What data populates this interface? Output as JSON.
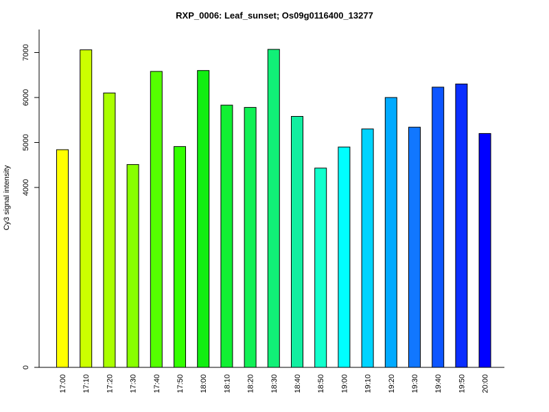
{
  "chart_data": {
    "type": "bar",
    "title": "RXP_0006: Leaf_sunset; Os09g0116400_13277",
    "xlabel": "",
    "ylabel": "Cy3 signal intensity",
    "y_ticks": [
      0,
      4000,
      5000,
      6000,
      7000
    ],
    "categories": [
      "17:00",
      "17:10",
      "17:20",
      "17:30",
      "17:40",
      "17:50",
      "18:00",
      "18:10",
      "18:20",
      "18:30",
      "18:40",
      "18:50",
      "19:00",
      "19:10",
      "19:20",
      "19:30",
      "19:40",
      "19:50",
      "20:00"
    ],
    "values": [
      4840,
      7060,
      6100,
      4510,
      6580,
      4910,
      6600,
      5830,
      5780,
      7070,
      5580,
      4430,
      4900,
      5300,
      6000,
      5340,
      6230,
      6300,
      5200
    ],
    "colors": [
      "#FFFF00",
      "#CCFF00",
      "#AAFF00",
      "#88FF00",
      "#55FF00",
      "#33FF00",
      "#11EE11",
      "#11F033",
      "#11F055",
      "#11F077",
      "#11EEA0",
      "#11FFCC",
      "#00FFFF",
      "#00D4FF",
      "#00AAFF",
      "#1177FF",
      "#0D55FF",
      "#0A2EFF",
      "#0000FF"
    ],
    "grid": false,
    "legend": "none"
  }
}
